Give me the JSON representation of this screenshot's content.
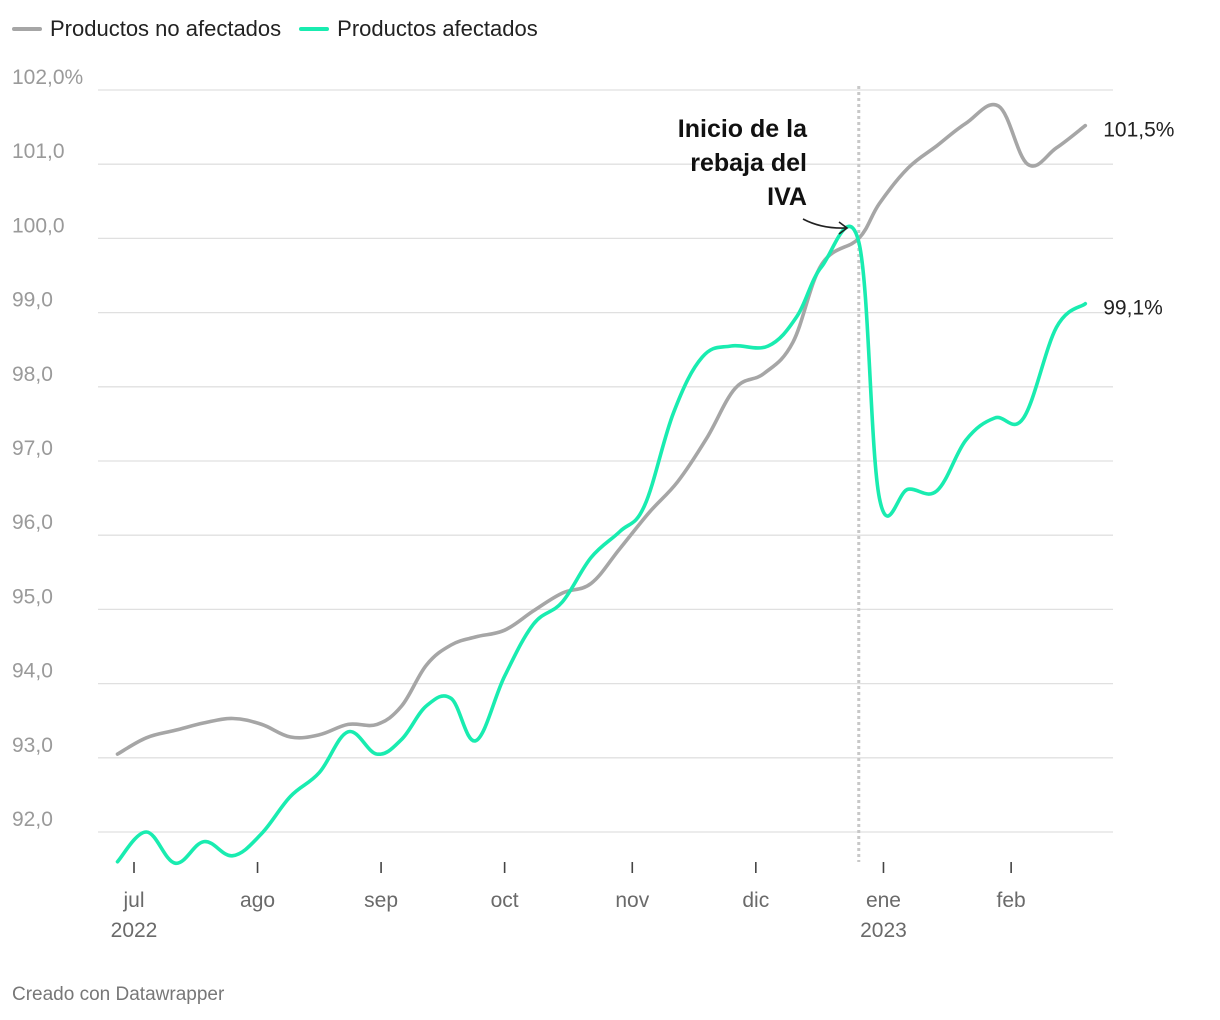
{
  "legend": {
    "series_0": "Productos no afectados",
    "series_1": "Productos afectados"
  },
  "credit": "Creado con Datawrapper",
  "annotation": [
    "Inicio de la",
    "rebaja del",
    "IVA"
  ],
  "colors": {
    "no_afectados": "#a6a6a6",
    "afectados": "#19ecb0",
    "grid": "#e0e0e0",
    "marker": "#c8c8c8"
  },
  "chart_data": {
    "type": "line",
    "title": "",
    "xlabel": "",
    "ylabel": "",
    "ylim": [
      91.6,
      102.0
    ],
    "y_ticks": [
      {
        "value": 102,
        "label": "102,0%"
      },
      {
        "value": 101,
        "label": "101,0"
      },
      {
        "value": 100,
        "label": "100,0"
      },
      {
        "value": 99,
        "label": "99,0"
      },
      {
        "value": 98,
        "label": "98,0"
      },
      {
        "value": 97,
        "label": "97,0"
      },
      {
        "value": 96,
        "label": "96,0"
      },
      {
        "value": 95,
        "label": "95,0"
      },
      {
        "value": 94,
        "label": "94,0"
      },
      {
        "value": 93,
        "label": "93,0"
      },
      {
        "value": 92,
        "label": "92,0"
      }
    ],
    "x_ticks": [
      {
        "date": "2022-07-05",
        "label": "jul",
        "year": "2022"
      },
      {
        "date": "2022-08-04",
        "label": "ago",
        "year": ""
      },
      {
        "date": "2022-09-03",
        "label": "sep",
        "year": ""
      },
      {
        "date": "2022-10-03",
        "label": "oct",
        "year": ""
      },
      {
        "date": "2022-11-03",
        "label": "nov",
        "year": ""
      },
      {
        "date": "2022-12-03",
        "label": "dic",
        "year": ""
      },
      {
        "date": "2023-01-03",
        "label": "ene",
        "year": "2023"
      },
      {
        "date": "2023-02-03",
        "label": "feb",
        "year": ""
      }
    ],
    "event_date": "2022-12-28",
    "series": [
      {
        "name": "Productos no afectados",
        "end_label": "101,5%",
        "points": [
          [
            "2022-07-01",
            93.05
          ],
          [
            "2022-07-08",
            93.27
          ],
          [
            "2022-07-15",
            93.37
          ],
          [
            "2022-07-22",
            93.47
          ],
          [
            "2022-07-29",
            93.53
          ],
          [
            "2022-08-05",
            93.45
          ],
          [
            "2022-08-12",
            93.28
          ],
          [
            "2022-08-19",
            93.31
          ],
          [
            "2022-08-26",
            93.45
          ],
          [
            "2022-09-02",
            93.45
          ],
          [
            "2022-09-08",
            93.7
          ],
          [
            "2022-09-14",
            94.25
          ],
          [
            "2022-09-20",
            94.52
          ],
          [
            "2022-09-26",
            94.63
          ],
          [
            "2022-10-03",
            94.72
          ],
          [
            "2022-10-10",
            94.98
          ],
          [
            "2022-10-17",
            95.22
          ],
          [
            "2022-10-24",
            95.35
          ],
          [
            "2022-10-31",
            95.82
          ],
          [
            "2022-11-07",
            96.3
          ],
          [
            "2022-11-14",
            96.72
          ],
          [
            "2022-11-21",
            97.3
          ],
          [
            "2022-11-28",
            97.98
          ],
          [
            "2022-12-05",
            98.18
          ],
          [
            "2022-12-12",
            98.6
          ],
          [
            "2022-12-19",
            99.65
          ],
          [
            "2022-12-28",
            100.0
          ],
          [
            "2023-01-02",
            100.47
          ],
          [
            "2023-01-09",
            100.95
          ],
          [
            "2023-01-16",
            101.25
          ],
          [
            "2023-01-23",
            101.55
          ],
          [
            "2023-01-31",
            101.78
          ],
          [
            "2023-02-07",
            101.0
          ],
          [
            "2023-02-14",
            101.22
          ],
          [
            "2023-02-21",
            101.52
          ]
        ]
      },
      {
        "name": "Productos afectados",
        "end_label": "99,1%",
        "points": [
          [
            "2022-07-01",
            91.6
          ],
          [
            "2022-07-08",
            92.0
          ],
          [
            "2022-07-15",
            91.58
          ],
          [
            "2022-07-22",
            91.87
          ],
          [
            "2022-07-29",
            91.68
          ],
          [
            "2022-08-05",
            91.98
          ],
          [
            "2022-08-12",
            92.48
          ],
          [
            "2022-08-19",
            92.8
          ],
          [
            "2022-08-26",
            93.35
          ],
          [
            "2022-09-02",
            93.05
          ],
          [
            "2022-09-08",
            93.25
          ],
          [
            "2022-09-14",
            93.7
          ],
          [
            "2022-09-20",
            93.8
          ],
          [
            "2022-09-26",
            93.23
          ],
          [
            "2022-10-03",
            94.1
          ],
          [
            "2022-10-10",
            94.8
          ],
          [
            "2022-10-17",
            95.1
          ],
          [
            "2022-10-24",
            95.7
          ],
          [
            "2022-10-31",
            96.05
          ],
          [
            "2022-11-06",
            96.4
          ],
          [
            "2022-11-13",
            97.65
          ],
          [
            "2022-11-20",
            98.4
          ],
          [
            "2022-11-27",
            98.55
          ],
          [
            "2022-12-06",
            98.55
          ],
          [
            "2022-12-13",
            98.95
          ],
          [
            "2022-12-19",
            99.62
          ],
          [
            "2022-12-28",
            99.95
          ],
          [
            "2023-01-02",
            96.5
          ],
          [
            "2023-01-09",
            96.62
          ],
          [
            "2023-01-16",
            96.6
          ],
          [
            "2023-01-23",
            97.28
          ],
          [
            "2023-01-30",
            97.58
          ],
          [
            "2023-02-06",
            97.58
          ],
          [
            "2023-02-14",
            98.8
          ],
          [
            "2023-02-21",
            99.12
          ]
        ]
      }
    ]
  }
}
